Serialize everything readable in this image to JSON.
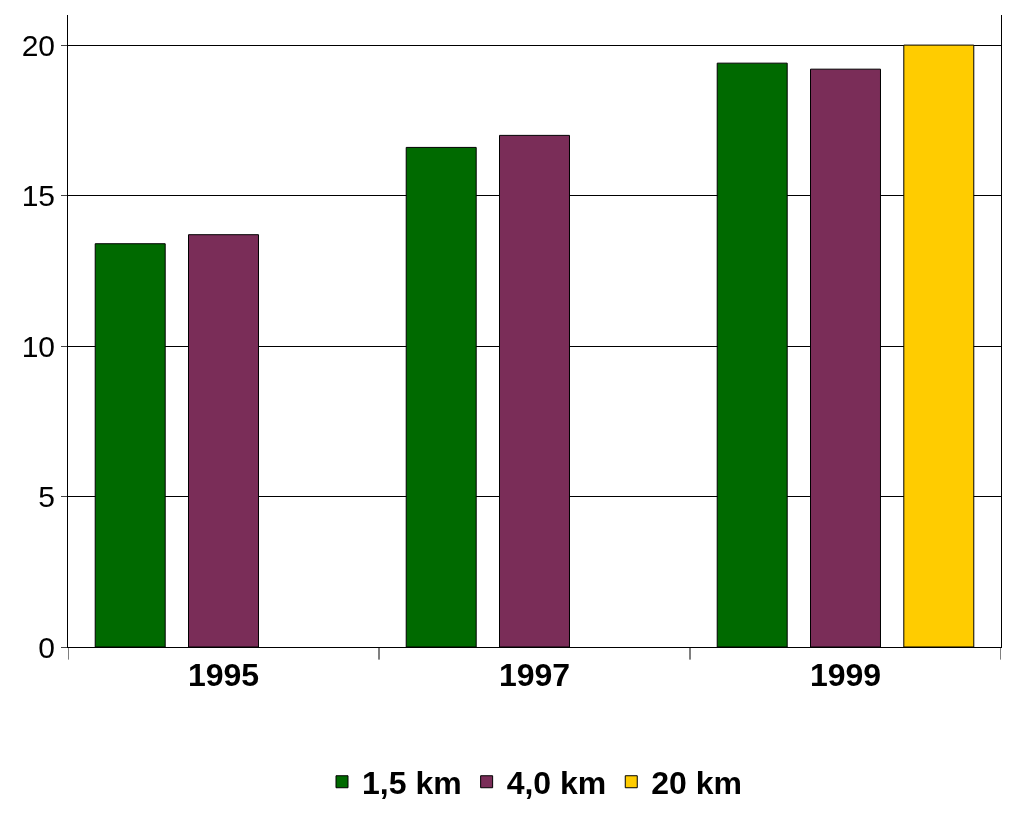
{
  "chart_data": {
    "type": "bar",
    "categories": [
      "1995",
      "1997",
      "1999"
    ],
    "series": [
      {
        "name": "1,5 km",
        "color": "#006a00",
        "values": [
          13.4,
          16.6,
          19.4
        ]
      },
      {
        "name": "4,0 km",
        "color": "#7a2d58",
        "values": [
          13.7,
          17.0,
          19.2
        ]
      },
      {
        "name": "20 km",
        "color": "#ffcc00",
        "values": [
          null,
          null,
          20.0
        ]
      }
    ],
    "ylim": [
      0,
      21
    ],
    "yticks": [
      0,
      5,
      10,
      15,
      20
    ],
    "grid": "y",
    "legend": "bottom"
  }
}
